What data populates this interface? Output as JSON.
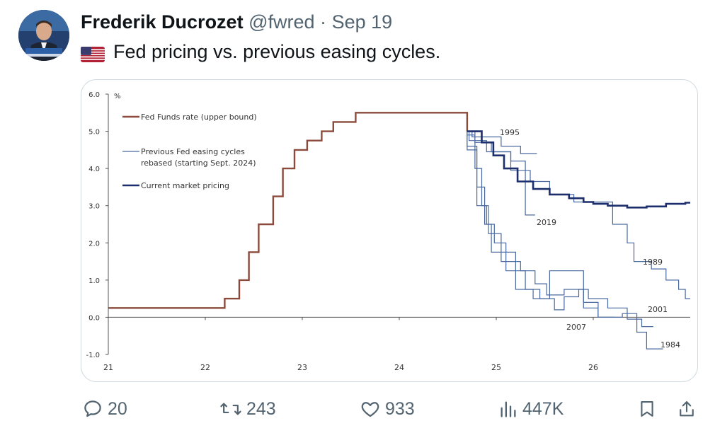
{
  "tweet": {
    "author_name": "Frederik Ducrozet",
    "handle": "@fwred",
    "separator": "·",
    "date": "Sep 19",
    "text": "Fed pricing vs. previous easing cycles.",
    "flag_icon": "us-flag-icon"
  },
  "chart_data": {
    "type": "line",
    "ylabel": "%",
    "ylim": [
      -1.0,
      6.0
    ],
    "xlim": [
      21,
      27
    ],
    "yticks": [
      "6.0",
      "5.0",
      "4.0",
      "3.0",
      "2.0",
      "1.0",
      "0.0",
      "-1.0"
    ],
    "xticks": [
      "21",
      "22",
      "23",
      "24",
      "25",
      "26"
    ],
    "legend": [
      {
        "label": "Fed Funds rate (upper bound)",
        "color": "#8b4a3c"
      },
      {
        "label": "Previous Fed easing cycles",
        "label2": "rebased (starting Sept. 2024)",
        "color": "#4a6aa0"
      },
      {
        "label": "Current market pricing",
        "color": "#1c2e6b"
      }
    ],
    "annotations": [
      "1995",
      "2019",
      "1989",
      "2001",
      "2007",
      "1984"
    ],
    "series": [
      {
        "name": "Fed Funds rate (upper bound)",
        "color": "#8b4a3c",
        "points": [
          [
            21,
            0.25
          ],
          [
            22.2,
            0.25
          ],
          [
            22.2,
            0.5
          ],
          [
            22.35,
            0.5
          ],
          [
            22.35,
            1.0
          ],
          [
            22.45,
            1.0
          ],
          [
            22.45,
            1.75
          ],
          [
            22.55,
            1.75
          ],
          [
            22.55,
            2.5
          ],
          [
            22.7,
            2.5
          ],
          [
            22.7,
            3.25
          ],
          [
            22.8,
            3.25
          ],
          [
            22.8,
            4.0
          ],
          [
            22.92,
            4.0
          ],
          [
            22.92,
            4.5
          ],
          [
            23.05,
            4.5
          ],
          [
            23.05,
            4.75
          ],
          [
            23.2,
            4.75
          ],
          [
            23.2,
            5.0
          ],
          [
            23.32,
            5.0
          ],
          [
            23.32,
            5.25
          ],
          [
            23.55,
            5.25
          ],
          [
            23.55,
            5.5
          ],
          [
            24.7,
            5.5
          ],
          [
            24.7,
            5.0
          ]
        ]
      },
      {
        "name": "Current market pricing",
        "color": "#1c2e6b",
        "points": [
          [
            24.7,
            5.0
          ],
          [
            24.85,
            5.0
          ],
          [
            24.85,
            4.7
          ],
          [
            24.97,
            4.7
          ],
          [
            24.97,
            4.35
          ],
          [
            25.08,
            4.35
          ],
          [
            25.08,
            4.0
          ],
          [
            25.22,
            4.0
          ],
          [
            25.22,
            3.65
          ],
          [
            25.38,
            3.65
          ],
          [
            25.38,
            3.45
          ],
          [
            25.55,
            3.45
          ],
          [
            25.55,
            3.3
          ],
          [
            25.75,
            3.3
          ],
          [
            25.75,
            3.2
          ],
          [
            25.9,
            3.2
          ],
          [
            25.9,
            3.1
          ],
          [
            26.0,
            3.1
          ],
          [
            26.0,
            3.05
          ],
          [
            26.15,
            3.05
          ],
          [
            26.15,
            3.0
          ],
          [
            26.35,
            3.0
          ],
          [
            26.35,
            2.95
          ],
          [
            26.55,
            2.95
          ],
          [
            26.55,
            2.98
          ],
          [
            26.75,
            2.98
          ],
          [
            26.75,
            3.05
          ],
          [
            26.95,
            3.05
          ],
          [
            26.95,
            3.08
          ],
          [
            27.0,
            3.08
          ]
        ]
      },
      {
        "name": "1995",
        "color": "#4a6aa0",
        "points": [
          [
            24.7,
            5.0
          ],
          [
            24.75,
            5.0
          ],
          [
            24.75,
            4.85
          ],
          [
            25.05,
            4.85
          ],
          [
            25.05,
            4.6
          ],
          [
            25.25,
            4.6
          ],
          [
            25.25,
            4.4
          ],
          [
            25.42,
            4.4
          ]
        ]
      },
      {
        "name": "2019",
        "color": "#4a6aa0",
        "points": [
          [
            24.7,
            5.0
          ],
          [
            24.72,
            5.0
          ],
          [
            24.72,
            4.75
          ],
          [
            24.9,
            4.75
          ],
          [
            24.9,
            4.45
          ],
          [
            25.15,
            4.45
          ],
          [
            25.15,
            4.2
          ],
          [
            25.3,
            4.2
          ],
          [
            25.3,
            2.75
          ],
          [
            25.4,
            2.75
          ]
        ]
      },
      {
        "name": "1989",
        "color": "#4a6aa0",
        "points": [
          [
            24.7,
            5.0
          ],
          [
            24.78,
            5.0
          ],
          [
            24.78,
            4.7
          ],
          [
            24.95,
            4.7
          ],
          [
            24.95,
            4.45
          ],
          [
            25.15,
            4.45
          ],
          [
            25.15,
            3.95
          ],
          [
            25.35,
            3.95
          ],
          [
            25.35,
            3.65
          ],
          [
            25.55,
            3.65
          ],
          [
            25.55,
            3.3
          ],
          [
            25.8,
            3.3
          ],
          [
            25.8,
            3.1
          ],
          [
            26.2,
            3.1
          ],
          [
            26.2,
            2.5
          ],
          [
            26.35,
            2.5
          ],
          [
            26.35,
            2.0
          ],
          [
            26.42,
            2.0
          ],
          [
            26.42,
            1.5
          ],
          [
            26.6,
            1.5
          ],
          [
            26.6,
            1.3
          ],
          [
            26.75,
            1.3
          ],
          [
            26.75,
            1.0
          ],
          [
            26.88,
            1.0
          ],
          [
            26.88,
            0.75
          ],
          [
            26.95,
            0.75
          ],
          [
            26.95,
            0.5
          ],
          [
            27.0,
            0.5
          ]
        ]
      },
      {
        "name": "2001",
        "color": "#4a6aa0",
        "points": [
          [
            24.7,
            5.0
          ],
          [
            24.7,
            4.5
          ],
          [
            24.8,
            4.5
          ],
          [
            24.8,
            3.0
          ],
          [
            24.9,
            3.0
          ],
          [
            24.9,
            2.5
          ],
          [
            24.98,
            2.5
          ],
          [
            24.98,
            2.0
          ],
          [
            25.1,
            2.0
          ],
          [
            25.1,
            1.75
          ],
          [
            25.2,
            1.75
          ],
          [
            25.2,
            1.25
          ],
          [
            25.3,
            1.25
          ],
          [
            25.3,
            0.75
          ],
          [
            25.45,
            0.75
          ],
          [
            25.45,
            0.5
          ],
          [
            25.6,
            0.5
          ],
          [
            25.6,
            0.2
          ],
          [
            25.7,
            0.2
          ],
          [
            25.7,
            0.55
          ],
          [
            25.85,
            0.55
          ],
          [
            25.85,
            0.75
          ],
          [
            25.95,
            0.75
          ],
          [
            25.95,
            0.5
          ],
          [
            26.15,
            0.5
          ],
          [
            26.15,
            0.25
          ],
          [
            26.35,
            0.25
          ],
          [
            26.35,
            -0.05
          ],
          [
            26.5,
            -0.05
          ],
          [
            26.5,
            -0.25
          ],
          [
            26.62,
            -0.25
          ]
        ]
      },
      {
        "name": "2007",
        "color": "#4a6aa0",
        "points": [
          [
            24.7,
            5.0
          ],
          [
            24.7,
            4.9
          ],
          [
            24.78,
            4.9
          ],
          [
            24.78,
            4.0
          ],
          [
            24.85,
            4.0
          ],
          [
            24.85,
            3.0
          ],
          [
            24.92,
            3.0
          ],
          [
            24.92,
            2.25
          ],
          [
            25.05,
            2.25
          ],
          [
            25.05,
            1.5
          ],
          [
            25.25,
            1.5
          ],
          [
            25.25,
            1.25
          ],
          [
            25.4,
            1.25
          ],
          [
            25.4,
            0.9
          ],
          [
            25.52,
            0.9
          ],
          [
            25.52,
            0.6
          ],
          [
            25.7,
            0.6
          ],
          [
            25.7,
            0.75
          ],
          [
            25.9,
            0.75
          ],
          [
            25.9,
            0.4
          ],
          [
            26.05,
            0.4
          ],
          [
            26.05,
            0.0
          ],
          [
            26.22,
            0.0
          ]
        ]
      },
      {
        "name": "1984",
        "color": "#4a6aa0",
        "points": [
          [
            24.7,
            5.0
          ],
          [
            24.7,
            4.6
          ],
          [
            24.8,
            4.6
          ],
          [
            24.8,
            3.5
          ],
          [
            24.88,
            3.5
          ],
          [
            24.88,
            2.5
          ],
          [
            24.95,
            2.5
          ],
          [
            24.95,
            1.75
          ],
          [
            25.1,
            1.75
          ],
          [
            25.1,
            1.25
          ],
          [
            25.2,
            1.25
          ],
          [
            25.2,
            0.75
          ],
          [
            25.38,
            0.75
          ],
          [
            25.38,
            0.5
          ],
          [
            25.55,
            0.5
          ],
          [
            25.55,
            1.25
          ],
          [
            25.9,
            1.25
          ],
          [
            25.9,
            0.25
          ],
          [
            26.05,
            0.25
          ],
          [
            26.05,
            0.0
          ],
          [
            26.3,
            0.0
          ],
          [
            26.3,
            0.1
          ],
          [
            26.45,
            0.1
          ],
          [
            26.45,
            -0.4
          ],
          [
            26.55,
            -0.4
          ],
          [
            26.55,
            -0.85
          ],
          [
            26.72,
            -0.85
          ]
        ]
      }
    ]
  },
  "actions": {
    "reply_count": "20",
    "retweet_count": "243",
    "like_count": "933",
    "views_count": "447K"
  }
}
